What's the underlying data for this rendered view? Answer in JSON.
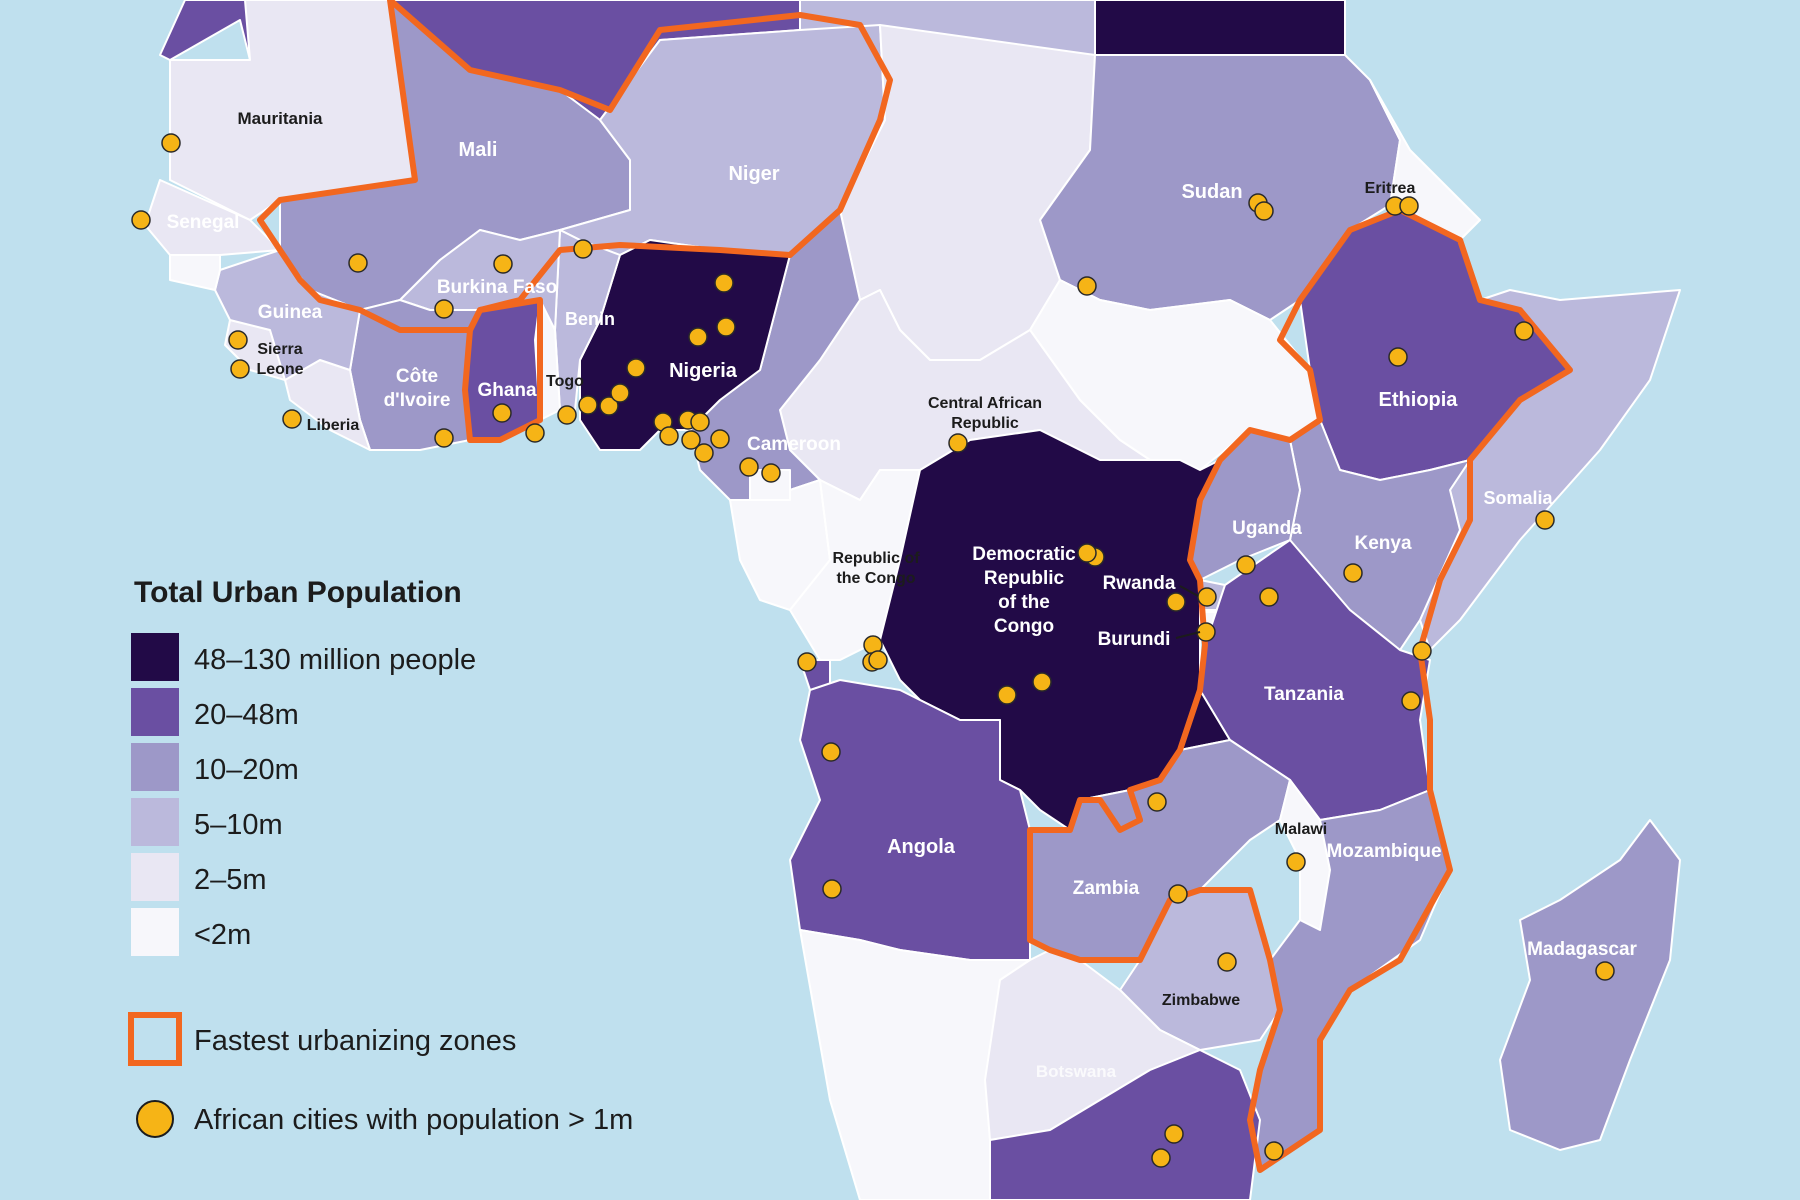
{
  "colors": {
    "ocean": "#bfe0ee",
    "c48_130": "#220a47",
    "c20_48": "#6a4fa2",
    "c10_20": "#9d98c8",
    "c5_10": "#bbb9dc",
    "c2_5": "#e9e7f3",
    "lt2": "#f7f7fb",
    "zone_outline": "#f2671f",
    "city_dot": "#f6b416",
    "border": "#ffffff"
  },
  "legend": {
    "title": "Total Urban Population",
    "items": [
      {
        "label": "48–130 million people",
        "color_key": "c48_130"
      },
      {
        "label": "20–48m",
        "color_key": "c20_48"
      },
      {
        "label": "10–20m",
        "color_key": "c10_20"
      },
      {
        "label": "5–10m",
        "color_key": "c5_10"
      },
      {
        "label": "2–5m",
        "color_key": "c2_5"
      },
      {
        "label": "<2m",
        "color_key": "lt2"
      }
    ],
    "zones_label": "Fastest urbanizing zones",
    "cities_label": "African cities with population > 1m"
  },
  "countries": {
    "mauritania": "Mauritania",
    "mali": "Mali",
    "niger": "Niger",
    "sudan": "Sudan",
    "eritrea": "Eritrea",
    "senegal": "Senegal",
    "burkina_faso": "Burkina Faso",
    "guinea": "Guinea",
    "benin": "Benin",
    "sierra_leone_1": "Sierra",
    "sierra_leone_2": "Leone",
    "nigeria": "Nigeria",
    "cote_divoire_1": "Côte",
    "cote_divoire_2": "d'Ivoire",
    "ghana": "Ghana",
    "togo": "Togo",
    "liberia": "Liberia",
    "car_1": "Central African",
    "car_2": "Republic",
    "ethiopia": "Ethiopia",
    "cameroon": "Cameroon",
    "somalia": "Somalia",
    "uganda": "Uganda",
    "kenya": "Kenya",
    "roc_1": "Republic of",
    "roc_2": "the Congo",
    "drc_1": "Democratic",
    "drc_2": "Republic",
    "drc_3": "of the",
    "drc_4": "Congo",
    "rwanda": "Rwanda",
    "burundi": "Burundi",
    "tanzania": "Tanzania",
    "angola": "Angola",
    "malawi": "Malawi",
    "mozambique": "Mozambique",
    "zambia": "Zambia",
    "madagascar": "Madagascar",
    "zimbabwe": "Zimbabwe",
    "botswana": "Botswana"
  }
}
